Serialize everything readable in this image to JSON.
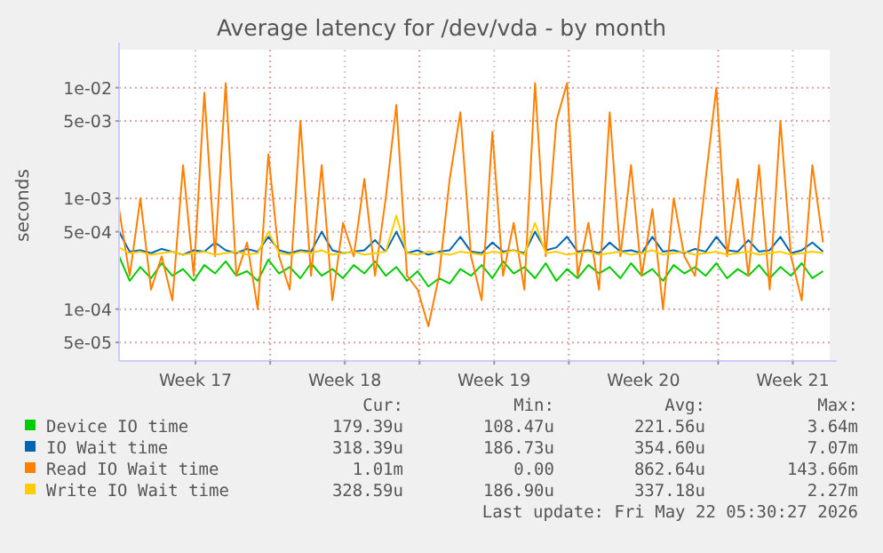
{
  "chart_data": {
    "type": "line",
    "title": "Average latency for /dev/vda - by month",
    "ylabel": "seconds",
    "log": "y",
    "x": [
      "2026-04-18T22:00",
      "2026-04-19T10:00",
      "2026-04-19T22:00",
      "2026-04-20T10:00",
      "2026-04-20T22:00",
      "2026-04-21T10:00",
      "2026-04-21T22:00",
      "2026-04-22T10:00",
      "2026-04-22T22:00",
      "2026-04-23T10:00",
      "2026-04-23T22:00",
      "2026-04-24T10:00",
      "2026-04-24T22:00",
      "2026-04-25T10:00",
      "2026-04-25T22:00",
      "2026-04-26T10:00",
      "2026-04-26T22:00",
      "2026-04-27T10:00",
      "2026-04-27T22:00",
      "2026-04-28T10:00",
      "2026-04-28T22:00",
      "2026-04-29T10:00",
      "2026-04-29T22:00",
      "2026-04-30T10:00",
      "2026-04-30T22:00",
      "2026-05-01T10:00",
      "2026-05-01T22:00",
      "2026-05-02T10:00",
      "2026-05-02T22:00",
      "2026-05-03T10:00",
      "2026-05-03T22:00",
      "2026-05-04T10:00",
      "2026-05-04T22:00",
      "2026-05-05T10:00",
      "2026-05-05T22:00",
      "2026-05-06T10:00",
      "2026-05-06T22:00",
      "2026-05-07T10:00",
      "2026-05-07T22:00",
      "2026-05-08T10:00",
      "2026-05-08T22:00",
      "2026-05-09T10:00",
      "2026-05-09T22:00",
      "2026-05-10T10:00",
      "2026-05-10T22:00",
      "2026-05-11T10:00",
      "2026-05-11T22:00",
      "2026-05-12T10:00",
      "2026-05-12T22:00",
      "2026-05-13T10:00",
      "2026-05-13T22:00",
      "2026-05-14T10:00",
      "2026-05-14T22:00",
      "2026-05-15T10:00",
      "2026-05-15T22:00",
      "2026-05-16T10:00",
      "2026-05-16T22:00",
      "2026-05-17T10:00",
      "2026-05-17T22:00",
      "2026-05-18T10:00",
      "2026-05-18T22:00",
      "2026-05-19T10:00",
      "2026-05-19T22:00",
      "2026-05-20T10:00",
      "2026-05-20T22:00",
      "2026-05-21T10:00",
      "2026-05-21T22:00"
    ],
    "series": [
      {
        "name": "Device IO time",
        "color": "#00cc00",
        "values": [
          0.0003,
          0.00018,
          0.00024,
          0.00019,
          0.00026,
          0.0002,
          0.00023,
          0.00018,
          0.00025,
          0.00021,
          0.00027,
          0.0002,
          0.00022,
          0.00018,
          0.00028,
          0.00021,
          0.00024,
          0.00019,
          0.00026,
          0.0002,
          0.00023,
          0.00019,
          0.00025,
          0.00021,
          0.00027,
          0.0002,
          0.00024,
          0.00018,
          0.00022,
          0.00016,
          0.00019,
          0.00017,
          0.00023,
          0.0002,
          0.00025,
          0.00019,
          0.00027,
          0.00021,
          0.00024,
          0.00019,
          0.00026,
          0.00018,
          0.00023,
          0.00019,
          0.00025,
          0.00021,
          0.00024,
          0.00019,
          0.00026,
          0.0002,
          0.00023,
          0.00018,
          0.00025,
          0.00021,
          0.00024,
          0.0002,
          0.00026,
          0.00019,
          0.00023,
          0.0002,
          0.00025,
          0.00019,
          0.00024,
          0.0002,
          0.00026,
          0.00019,
          0.00022
        ]
      },
      {
        "name": "IO Wait time",
        "color": "#0066b3",
        "values": [
          0.0005,
          0.00033,
          0.00034,
          0.00032,
          0.00035,
          0.00033,
          0.00031,
          0.00034,
          0.00033,
          0.0004,
          0.00034,
          0.00032,
          0.00035,
          0.00033,
          0.00045,
          0.00034,
          0.00032,
          0.00034,
          0.00033,
          0.0005,
          0.00034,
          0.00032,
          0.00033,
          0.00034,
          0.00042,
          0.00033,
          0.0005,
          0.00032,
          0.00034,
          0.00031,
          0.00033,
          0.00034,
          0.00045,
          0.00033,
          0.00032,
          0.0004,
          0.00033,
          0.00034,
          0.00032,
          0.0005,
          0.00034,
          0.00036,
          0.00045,
          0.00033,
          0.00034,
          0.00032,
          0.0004,
          0.00033,
          0.00034,
          0.00032,
          0.00045,
          0.00033,
          0.00034,
          0.00032,
          0.00035,
          0.00033,
          0.00045,
          0.00034,
          0.00033,
          0.00042,
          0.00033,
          0.00034,
          0.00045,
          0.00032,
          0.00034,
          0.0004,
          0.00033
        ]
      },
      {
        "name": "Read IO Wait time",
        "color": "#ff8000",
        "values": [
          0.0008,
          0.0002,
          0.001,
          0.00015,
          0.0003,
          0.00012,
          0.002,
          0.0002,
          0.009,
          0.0003,
          0.011,
          0.0002,
          0.0004,
          0.0001,
          0.0025,
          0.0003,
          0.00015,
          0.005,
          0.0002,
          0.002,
          0.00012,
          0.0006,
          0.0003,
          0.0015,
          0.0002,
          0.001,
          0.007,
          0.0002,
          0.00015,
          7e-05,
          0.0002,
          0.0015,
          0.006,
          0.0003,
          0.00012,
          0.004,
          0.0002,
          0.0006,
          0.00015,
          0.011,
          0.0003,
          0.005,
          0.011,
          0.0002,
          0.0006,
          0.00015,
          0.006,
          0.0003,
          0.002,
          0.0002,
          0.0008,
          0.0001,
          0.001,
          0.0003,
          0.0002,
          0.0015,
          0.01,
          0.0003,
          0.0015,
          0.0002,
          0.002,
          0.00015,
          0.005,
          0.0003,
          0.00012,
          0.002,
          0.0004
        ]
      },
      {
        "name": "Write IO Wait time",
        "color": "#ffcc00",
        "values": [
          0.00036,
          0.00032,
          0.00033,
          0.00031,
          0.00032,
          0.00033,
          0.00031,
          0.00032,
          0.00033,
          0.00031,
          0.00032,
          0.00033,
          0.00031,
          0.00032,
          0.0005,
          0.00032,
          0.00031,
          0.00033,
          0.00032,
          0.00034,
          0.00031,
          0.00032,
          0.00033,
          0.00031,
          0.00032,
          0.00033,
          0.0007,
          0.00032,
          0.00031,
          0.00033,
          0.00032,
          0.00031,
          0.00033,
          0.00032,
          0.00031,
          0.00033,
          0.00032,
          0.00034,
          0.00031,
          0.0006,
          0.00032,
          0.00033,
          0.00031,
          0.00032,
          0.00033,
          0.00031,
          0.00032,
          0.00033,
          0.00031,
          0.00032,
          0.00034,
          0.00031,
          0.00032,
          0.00033,
          0.00031,
          0.00032,
          0.00033,
          0.00031,
          0.00032,
          0.00033,
          0.00031,
          0.00032,
          0.00033,
          0.00031,
          0.00032,
          0.00033,
          0.00032
        ]
      }
    ],
    "xlim": [
      "2026-04-18T22:00",
      "2026-05-22T05:30"
    ],
    "xticks": [
      {
        "value": "2026-04-22T12:00",
        "label": "Week 17"
      },
      {
        "value": "2026-04-26T00:00",
        "label": null
      },
      {
        "value": "2026-04-29T12:00",
        "label": "Week 18"
      },
      {
        "value": "2026-05-03T00:00",
        "label": null
      },
      {
        "value": "2026-05-06T12:00",
        "label": "Week 19"
      },
      {
        "value": "2026-05-10T00:00",
        "label": null
      },
      {
        "value": "2026-05-13T12:00",
        "label": "Week 20"
      },
      {
        "value": "2026-05-17T00:00",
        "label": null
      },
      {
        "value": "2026-05-20T12:00",
        "label": "Week 21"
      }
    ],
    "ylim": [
      3.4e-05,
      0.022
    ],
    "yticks": [
      {
        "value": 5e-05,
        "label": "5e-05"
      },
      {
        "value": 0.0001,
        "label": "1e-04"
      },
      {
        "value": 0.0005,
        "label": "5e-04"
      },
      {
        "value": 0.001,
        "label": "1e-03"
      },
      {
        "value": 0.005,
        "label": "5e-03"
      },
      {
        "value": 0.01,
        "label": "1e-02"
      }
    ],
    "grid": true,
    "legend": "bottom",
    "marker": "none",
    "line_style": "solid",
    "annotations": [
      "Cur:",
      "Min:",
      "Avg:",
      "Max:",
      "179.39u",
      "108.47u",
      "221.56u",
      "3.64m",
      "318.39u",
      "186.73u",
      "354.60u",
      "7.07m",
      "1.01m",
      "0.00",
      "862.64u",
      "143.66m",
      "328.59u",
      "186.90u",
      "337.18u",
      "2.27m",
      "Last update: Fri May 22 05:30:27 2026"
    ]
  }
}
